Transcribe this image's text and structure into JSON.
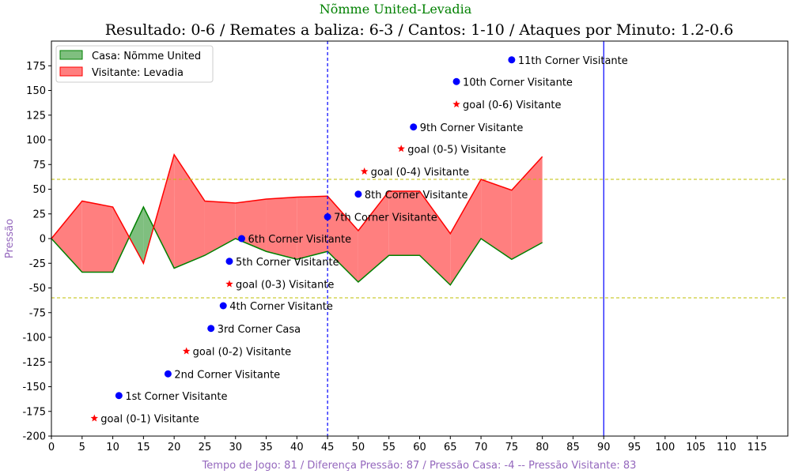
{
  "chart_data": {
    "type": "area",
    "suptitle": "Nõmme United-Levadia",
    "title": "Resultado: 0-6 / Remates a baliza: 6-3 / Cantos: 1-10 / Ataques por Minuto: 1.2-0.6",
    "xlabel": "Tempo de Jogo: 81 / Diferença Pressão: 87 / Pressão Casa: -4 -- Pressão Visitante: 83",
    "ylabel": "Pressão",
    "xlim": [
      0,
      120
    ],
    "ylim": [
      -200,
      200
    ],
    "xticks": [
      0,
      5,
      10,
      15,
      20,
      25,
      30,
      35,
      40,
      45,
      50,
      55,
      60,
      65,
      70,
      75,
      80,
      85,
      90,
      95,
      100,
      105,
      110,
      115
    ],
    "yticks": [
      -200,
      -175,
      -150,
      -125,
      -100,
      -75,
      -50,
      -25,
      0,
      25,
      50,
      75,
      100,
      125,
      150,
      175
    ],
    "x": [
      0,
      5,
      10,
      15,
      20,
      25,
      30,
      35,
      40,
      45,
      50,
      55,
      60,
      65,
      70,
      75,
      80
    ],
    "series": [
      {
        "name": "Casa: Nõmme United",
        "color": "#008000",
        "fill": "#7fbf7f",
        "values": [
          0,
          -34,
          -34,
          32,
          -30,
          -17,
          0,
          -13,
          -21,
          -13,
          -44,
          -17,
          -17,
          -47,
          0,
          -21,
          -4
        ]
      },
      {
        "name": "Visitante: Levadia",
        "color": "#ff0000",
        "fill": "#ff7f7f",
        "values": [
          0,
          38,
          32,
          -25,
          85,
          38,
          36,
          40,
          42,
          43,
          8,
          48,
          48,
          5,
          60,
          49,
          83
        ]
      }
    ],
    "hlines": [
      {
        "y": 60,
        "color": "#bfbf00",
        "style": "dashed"
      },
      {
        "y": -60,
        "color": "#bfbf00",
        "style": "dashed"
      }
    ],
    "vlines": [
      {
        "x": 45,
        "color": "#0000ff",
        "style": "dashed"
      },
      {
        "x": 90,
        "color": "#0000ff",
        "style": "solid"
      }
    ],
    "events": [
      {
        "x": 7,
        "y": -182,
        "marker": "star",
        "color": "#ff0000",
        "label": "goal (0-1) Visitante"
      },
      {
        "x": 11,
        "y": -159,
        "marker": "dot",
        "color": "#0000ff",
        "label": "1st Corner Visitante"
      },
      {
        "x": 19,
        "y": -137,
        "marker": "dot",
        "color": "#0000ff",
        "label": "2nd Corner Visitante"
      },
      {
        "x": 22,
        "y": -114,
        "marker": "star",
        "color": "#ff0000",
        "label": "goal (0-2) Visitante"
      },
      {
        "x": 26,
        "y": -91,
        "marker": "dot",
        "color": "#0000ff",
        "label": "3rd Corner Casa"
      },
      {
        "x": 28,
        "y": -68,
        "marker": "dot",
        "color": "#0000ff",
        "label": "4th Corner Visitante"
      },
      {
        "x": 29,
        "y": -46,
        "marker": "star",
        "color": "#ff0000",
        "label": "goal (0-3) Visitante"
      },
      {
        "x": 29,
        "y": -23,
        "marker": "dot",
        "color": "#0000ff",
        "label": "5th Corner Visitante"
      },
      {
        "x": 31,
        "y": 0,
        "marker": "dot",
        "color": "#0000ff",
        "label": "6th Corner Visitante"
      },
      {
        "x": 45,
        "y": 22,
        "marker": "dot",
        "color": "#0000ff",
        "label": "7th Corner Visitante"
      },
      {
        "x": 50,
        "y": 45,
        "marker": "dot",
        "color": "#0000ff",
        "label": "8th Corner Visitante"
      },
      {
        "x": 51,
        "y": 68,
        "marker": "star",
        "color": "#ff0000",
        "label": "goal (0-4) Visitante"
      },
      {
        "x": 57,
        "y": 91,
        "marker": "star",
        "color": "#ff0000",
        "label": "goal (0-5) Visitante"
      },
      {
        "x": 59,
        "y": 113,
        "marker": "dot",
        "color": "#0000ff",
        "label": "9th Corner Visitante"
      },
      {
        "x": 66,
        "y": 136,
        "marker": "star",
        "color": "#ff0000",
        "label": "goal (0-6) Visitante"
      },
      {
        "x": 66,
        "y": 159,
        "marker": "dot",
        "color": "#0000ff",
        "label": "10th Corner Visitante"
      },
      {
        "x": 75,
        "y": 181,
        "marker": "dot",
        "color": "#0000ff",
        "label": "11th Corner Visitante"
      }
    ],
    "grid": false,
    "legend_position": "upper-left"
  }
}
